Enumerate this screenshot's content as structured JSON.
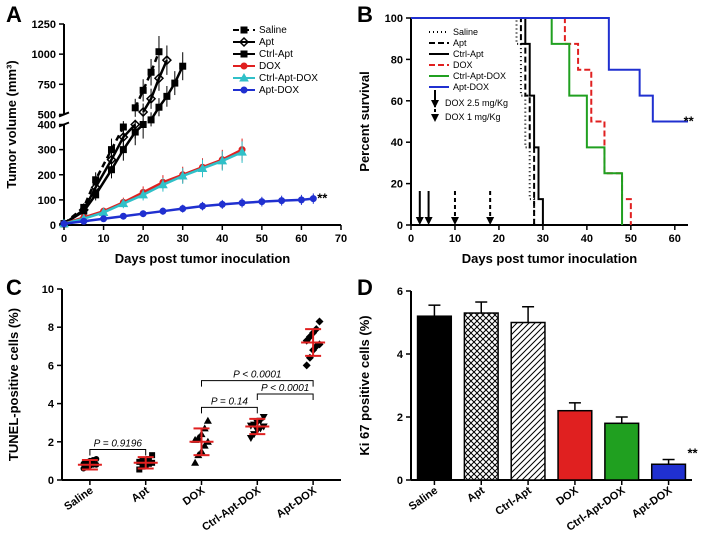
{
  "panels": {
    "A": {
      "label": "A",
      "title": "",
      "x_label": "Days post tumor inoculation",
      "y_label": "Tumor volume (mm³)",
      "x_ticks": [
        0,
        10,
        20,
        30,
        40,
        50,
        60,
        70
      ],
      "y_ticks_lower": [
        0,
        100,
        200,
        300,
        400
      ],
      "y_ticks_upper": [
        500,
        750,
        1000,
        1250
      ],
      "break": true,
      "colors": {
        "Saline": "#000000",
        "Apt": "#000000",
        "Ctrl-Apt": "#000000",
        "DOX": "#e02020",
        "Ctrl-Apt-DOX": "#30c0c8",
        "Apt-DOX": "#2030d0"
      },
      "legend_order": [
        "Saline",
        "Apt",
        "Ctrl-Apt",
        "DOX",
        "Ctrl-Apt-DOX",
        "Apt-DOX"
      ],
      "series": {
        "Saline": {
          "x": [
            0,
            5,
            8,
            12,
            15,
            18,
            20,
            22,
            24
          ],
          "y": [
            5,
            70,
            180,
            300,
            390,
            555,
            700,
            850,
            1020
          ],
          "dash": "6,4",
          "marker": "square"
        },
        "Apt": {
          "x": [
            0,
            5,
            8,
            12,
            15,
            18,
            20,
            22,
            24,
            26
          ],
          "y": [
            5,
            60,
            150,
            260,
            350,
            400,
            520,
            630,
            800,
            950
          ],
          "dash": "",
          "marker": "diamond-open"
        },
        "Ctrl-Apt": {
          "x": [
            0,
            5,
            8,
            12,
            15,
            18,
            20,
            22,
            24,
            26,
            28,
            30
          ],
          "y": [
            5,
            55,
            120,
            220,
            300,
            370,
            400,
            455,
            560,
            650,
            760,
            900
          ],
          "dash": "",
          "marker": "square"
        },
        "DOX": {
          "x": [
            0,
            5,
            10,
            15,
            20,
            25,
            30,
            35,
            40,
            45
          ],
          "y": [
            5,
            30,
            55,
            90,
            130,
            170,
            200,
            230,
            260,
            300
          ],
          "dash": "",
          "marker": "circle"
        },
        "Ctrl-Apt-DOX": {
          "x": [
            0,
            5,
            10,
            15,
            20,
            25,
            30,
            35,
            40,
            45
          ],
          "y": [
            5,
            25,
            50,
            85,
            120,
            160,
            195,
            225,
            255,
            290
          ],
          "dash": "",
          "marker": "triangle"
        },
        "Apt-DOX": {
          "x": [
            0,
            5,
            10,
            15,
            20,
            25,
            30,
            35,
            40,
            45,
            50,
            55,
            60,
            63
          ],
          "y": [
            5,
            15,
            25,
            35,
            45,
            55,
            65,
            75,
            82,
            88,
            93,
            97,
            100,
            105
          ],
          "dash": "",
          "marker": "circle"
        }
      },
      "sig": "**"
    },
    "B": {
      "label": "B",
      "x_label": "Days post tumor inoculation",
      "y_label": "Percent survival",
      "x_ticks": [
        0,
        10,
        20,
        30,
        40,
        50,
        60
      ],
      "y_ticks": [
        0,
        20,
        40,
        60,
        80,
        100
      ],
      "colors": {
        "Saline": "#000000",
        "Apt": "#000000",
        "Ctrl-Apt": "#000000",
        "DOX": "#e02020",
        "Ctrl-Apt-DOX": "#20a020",
        "Apt-DOX": "#2030d0"
      },
      "legend_order": [
        "Saline",
        "Apt",
        "Ctrl-Apt",
        "DOX",
        "Ctrl-Apt-DOX",
        "Apt-DOX"
      ],
      "dashes": {
        "Saline": "1,3",
        "Apt": "6,3",
        "Ctrl-Apt": "",
        "DOX": "6,3",
        "Ctrl-Apt-DOX": "",
        "Apt-DOX": ""
      },
      "series": {
        "Saline": {
          "steps": [
            [
              0,
              100
            ],
            [
              24,
              100
            ],
            [
              24,
              87.5
            ],
            [
              25,
              87.5
            ],
            [
              25,
              62.5
            ],
            [
              26,
              62.5
            ],
            [
              26,
              37.5
            ],
            [
              27,
              37.5
            ],
            [
              27,
              12.5
            ],
            [
              28,
              12.5
            ],
            [
              28,
              0
            ]
          ]
        },
        "Apt": {
          "steps": [
            [
              0,
              100
            ],
            [
              25,
              100
            ],
            [
              25,
              87.5
            ],
            [
              26,
              87.5
            ],
            [
              26,
              62.5
            ],
            [
              27,
              62.5
            ],
            [
              27,
              37.5
            ],
            [
              28,
              37.5
            ],
            [
              28,
              0
            ]
          ]
        },
        "Ctrl-Apt": {
          "steps": [
            [
              0,
              100
            ],
            [
              26,
              100
            ],
            [
              26,
              87.5
            ],
            [
              27,
              87.5
            ],
            [
              27,
              62.5
            ],
            [
              28,
              62.5
            ],
            [
              28,
              37.5
            ],
            [
              29,
              37.5
            ],
            [
              29,
              12.5
            ],
            [
              30,
              12.5
            ],
            [
              30,
              0
            ]
          ]
        },
        "DOX": {
          "steps": [
            [
              0,
              100
            ],
            [
              35,
              100
            ],
            [
              35,
              87.5
            ],
            [
              38,
              87.5
            ],
            [
              38,
              75
            ],
            [
              41,
              75
            ],
            [
              41,
              50
            ],
            [
              44,
              50
            ],
            [
              44,
              25
            ],
            [
              48,
              25
            ],
            [
              48,
              12.5
            ],
            [
              50,
              12.5
            ],
            [
              50,
              0
            ]
          ]
        },
        "Ctrl-Apt-DOX": {
          "steps": [
            [
              0,
              100
            ],
            [
              32,
              100
            ],
            [
              32,
              87.5
            ],
            [
              36,
              87.5
            ],
            [
              36,
              62.5
            ],
            [
              40,
              62.5
            ],
            [
              40,
              37.5
            ],
            [
              44,
              37.5
            ],
            [
              44,
              25
            ],
            [
              48,
              25
            ],
            [
              48,
              0
            ]
          ]
        },
        "Apt-DOX": {
          "steps": [
            [
              0,
              100
            ],
            [
              45,
              100
            ],
            [
              45,
              75
            ],
            [
              52,
              75
            ],
            [
              52,
              62.5
            ],
            [
              55,
              62.5
            ],
            [
              55,
              50
            ],
            [
              63,
              50
            ]
          ]
        }
      },
      "dose_arrows": {
        "solid": [
          2,
          4
        ],
        "dashed": [
          10,
          18
        ]
      },
      "dose_labels": {
        "solid": "DOX 2.5 mg/Kg",
        "dashed": "DOX 1 mg/Kg"
      },
      "sig": "**"
    },
    "C": {
      "label": "C",
      "y_label": "TUNEL-positive cells (%)",
      "y_ticks": [
        0,
        2,
        4,
        6,
        8,
        10
      ],
      "categories": [
        "Saline",
        "Apt",
        "DOX",
        "Ctrl-Apt-DOX",
        "Apt-DOX"
      ],
      "markers": [
        "circle",
        "square",
        "triangle",
        "triangle-down",
        "diamond"
      ],
      "means": [
        0.8,
        0.9,
        2.0,
        2.8,
        7.2
      ],
      "sds": [
        0.25,
        0.3,
        0.7,
        0.4,
        0.7
      ],
      "points": {
        "Saline": [
          0.6,
          0.7,
          0.75,
          0.8,
          0.8,
          0.85,
          0.9,
          1.0,
          1.05,
          1.1
        ],
        "Apt": [
          0.55,
          0.7,
          0.75,
          0.85,
          0.9,
          0.95,
          1.0,
          1.05,
          1.1,
          1.3
        ],
        "DOX": [
          0.9,
          1.3,
          1.5,
          1.8,
          2.0,
          2.1,
          2.2,
          2.4,
          2.7,
          3.1
        ],
        "Ctrl-Apt-DOX": [
          2.2,
          2.4,
          2.6,
          2.7,
          2.8,
          2.85,
          2.9,
          3.0,
          3.1,
          3.3
        ],
        "Apt-DOX": [
          6.0,
          6.4,
          6.8,
          7.0,
          7.1,
          7.3,
          7.5,
          7.7,
          7.9,
          8.3
        ]
      },
      "pvals": [
        {
          "a": 0,
          "b": 1,
          "y": 1.6,
          "text": "P = 0.9196"
        },
        {
          "a": 2,
          "b": 3,
          "y": 3.8,
          "text": "P = 0.14"
        },
        {
          "a": 2,
          "b": 4,
          "y": 5.2,
          "text": "P < 0.0001"
        },
        {
          "a": 3,
          "b": 4,
          "y": 4.5,
          "text": "P < 0.0001"
        }
      ],
      "err_color": "#e02020",
      "point_color": "#000000"
    },
    "D": {
      "label": "D",
      "y_label": "Ki 67 positive cells (%)",
      "y_ticks": [
        0,
        2,
        4,
        6
      ],
      "categories": [
        "Saline",
        "Apt",
        "Ctrl-Apt",
        "DOX",
        "Ctrl-Apt-DOX",
        "Apt-DOX"
      ],
      "values": [
        5.2,
        5.3,
        5.0,
        2.2,
        1.8,
        0.5
      ],
      "errs": [
        0.35,
        0.35,
        0.5,
        0.25,
        0.2,
        0.15
      ],
      "fills": [
        "#000000",
        "pattern-check",
        "pattern-diag",
        "#e02020",
        "#20a020",
        "#2030d0"
      ],
      "err_color": "#000000",
      "sig_index": 5,
      "sig": "**"
    }
  },
  "label_fontsize": 22
}
